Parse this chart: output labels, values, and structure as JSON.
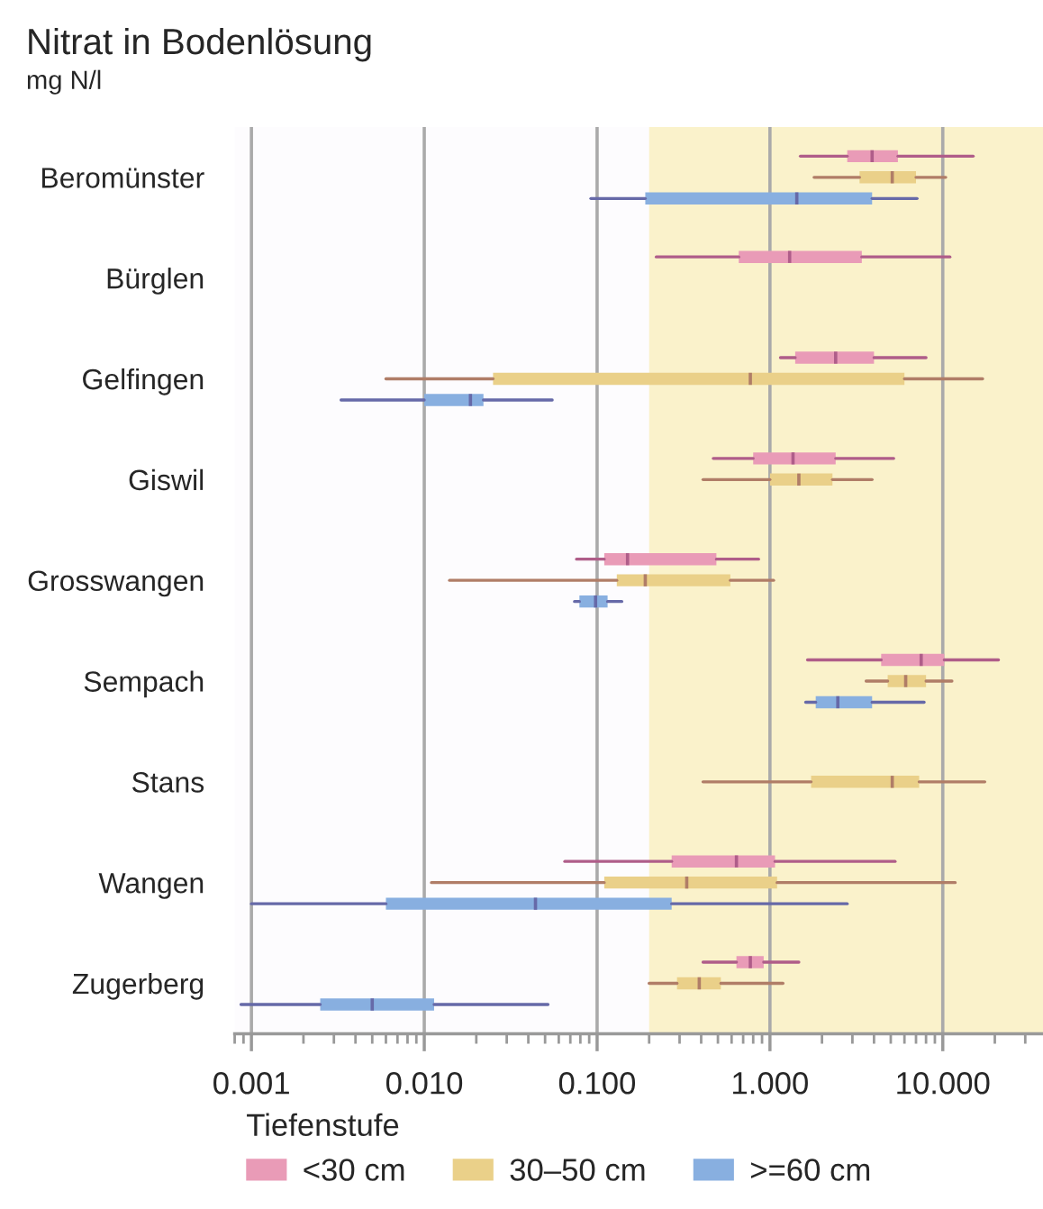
{
  "chart_data": {
    "type": "box",
    "title": "Nitrat in Bodenlösung",
    "subtitle": "mg N/l",
    "categories": [
      "Beromünster",
      "Bürglen",
      "Gelfingen",
      "Giswil",
      "Grosswangen",
      "Sempach",
      "Stans",
      "Wangen",
      "Zugerberg"
    ],
    "orientation": "horizontal",
    "log": "x",
    "xlim": [
      0.0008,
      38
    ],
    "xticks": [
      {
        "value": 0.001,
        "label": "0.001"
      },
      {
        "value": 0.01,
        "label": "0.010"
      },
      {
        "value": 0.1,
        "label": "0.100"
      },
      {
        "value": 1,
        "label": "1.000"
      },
      {
        "value": 10,
        "label": "10.000"
      }
    ],
    "grid": "x",
    "legend": "bottom",
    "legend_title": "Tiefenstufe",
    "bands": [
      {
        "axis": "x",
        "from": 0.2,
        "to": 38,
        "color": "#faf2cb"
      }
    ],
    "series": [
      {
        "name": "<30 cm",
        "color": "#e99bb7",
        "boxes": [
          {
            "low": 1.5,
            "q1": 2.8,
            "median": 3.9,
            "q3": 5.5,
            "high": 15
          },
          {
            "low": 0.22,
            "q1": 0.66,
            "median": 1.3,
            "q3": 3.4,
            "high": 11
          },
          {
            "low": 1.15,
            "q1": 1.4,
            "median": 2.4,
            "q3": 4.0,
            "high": 8.0
          },
          {
            "low": 0.47,
            "q1": 0.8,
            "median": 1.36,
            "q3": 2.4,
            "high": 5.2
          },
          {
            "low": 0.076,
            "q1": 0.11,
            "median": 0.15,
            "q3": 0.49,
            "high": 0.86
          },
          {
            "low": 1.65,
            "q1": 4.4,
            "median": 7.5,
            "q3": 10.2,
            "high": 21
          },
          null,
          {
            "low": 0.065,
            "q1": 0.27,
            "median": 0.64,
            "q3": 1.07,
            "high": 5.3
          },
          {
            "low": 0.41,
            "q1": 0.64,
            "median": 0.77,
            "q3": 0.92,
            "high": 1.47
          }
        ]
      },
      {
        "name": "30–50 cm",
        "color": "#ead089",
        "boxes": [
          {
            "low": 1.8,
            "q1": 3.3,
            "median": 5.1,
            "q3": 7.0,
            "high": 10.4
          },
          null,
          {
            "low": 0.006,
            "q1": 0.025,
            "median": 0.77,
            "q3": 6.0,
            "high": 17
          },
          {
            "low": 0.41,
            "q1": 1.0,
            "median": 1.47,
            "q3": 2.3,
            "high": 3.9
          },
          {
            "low": 0.014,
            "q1": 0.13,
            "median": 0.19,
            "q3": 0.59,
            "high": 1.05
          },
          {
            "low": 3.6,
            "q1": 4.8,
            "median": 6.1,
            "q3": 8.0,
            "high": 11.3
          },
          {
            "low": 0.41,
            "q1": 1.73,
            "median": 5.1,
            "q3": 7.3,
            "high": 17.5
          },
          {
            "low": 0.011,
            "q1": 0.11,
            "median": 0.33,
            "q3": 1.1,
            "high": 11.8
          },
          {
            "low": 0.2,
            "q1": 0.29,
            "median": 0.39,
            "q3": 0.52,
            "high": 1.19
          }
        ]
      },
      {
        "name": ">=60 cm",
        "color": "#88afe0",
        "boxes": [
          {
            "low": 0.092,
            "q1": 0.19,
            "median": 1.43,
            "q3": 3.9,
            "high": 7.1
          },
          null,
          {
            "low": 0.0033,
            "q1": 0.01,
            "median": 0.0185,
            "q3": 0.022,
            "high": 0.055
          },
          null,
          {
            "low": 0.074,
            "q1": 0.079,
            "median": 0.098,
            "q3": 0.115,
            "high": 0.139
          },
          {
            "low": 1.61,
            "q1": 1.84,
            "median": 2.47,
            "q3": 3.9,
            "high": 7.8
          },
          null,
          {
            "low": 0.001,
            "q1": 0.006,
            "median": 0.044,
            "q3": 0.27,
            "high": 2.8
          },
          {
            "low": 0.00087,
            "q1": 0.0025,
            "median": 0.005,
            "q3": 0.0114,
            "high": 0.052
          }
        ]
      }
    ]
  }
}
